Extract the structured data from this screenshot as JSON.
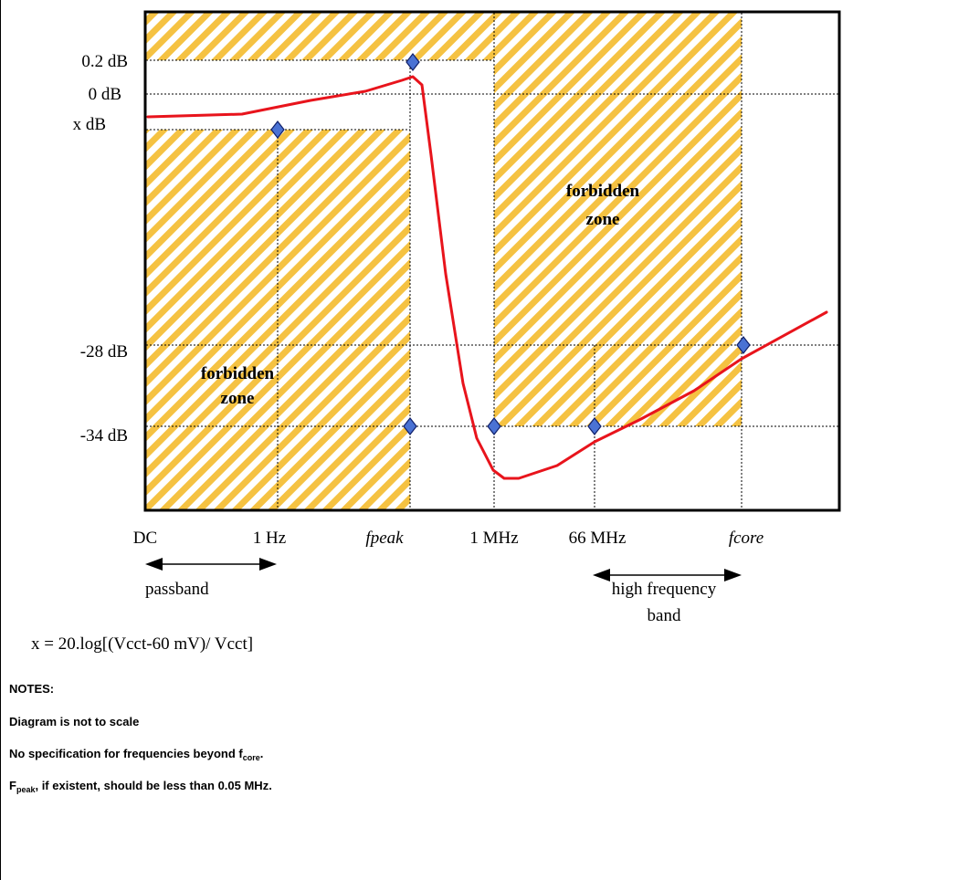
{
  "y_labels": {
    "p02": "0.2 dB",
    "zero": "0 dB",
    "x": "x dB",
    "m28": "-28 dB",
    "m34": "-34 dB"
  },
  "x_labels": {
    "dc": "DC",
    "hz1": "1 Hz",
    "fpeak": "fpeak",
    "mhz1": "1 MHz",
    "mhz66": "66 MHz",
    "fcore": "fcore"
  },
  "zones": {
    "left": [
      "forbidden",
      "zone"
    ],
    "right": [
      "forbidden",
      "zone"
    ]
  },
  "bands": {
    "passband": "passband",
    "high_line1": "high frequency",
    "high_line2": "band"
  },
  "formula": "x = 20.log[(Vcct-60 mV)/ Vcct]",
  "notes": {
    "heading": "NOTES:",
    "n1": "Diagram is not to scale",
    "n2_prefix": "No specification for frequencies beyond f",
    "n2_sub": "core",
    "n2_suffix": ".",
    "n3_prefix": "F",
    "n3_sub": "peak",
    "n3_suffix": ", if existent, should be less than 0.05 MHz."
  },
  "colors": {
    "hatch_stripe": "#f5c242",
    "curve": "#e8141c",
    "marker_fill": "#4a72d4",
    "marker_stroke": "#10206a"
  }
}
